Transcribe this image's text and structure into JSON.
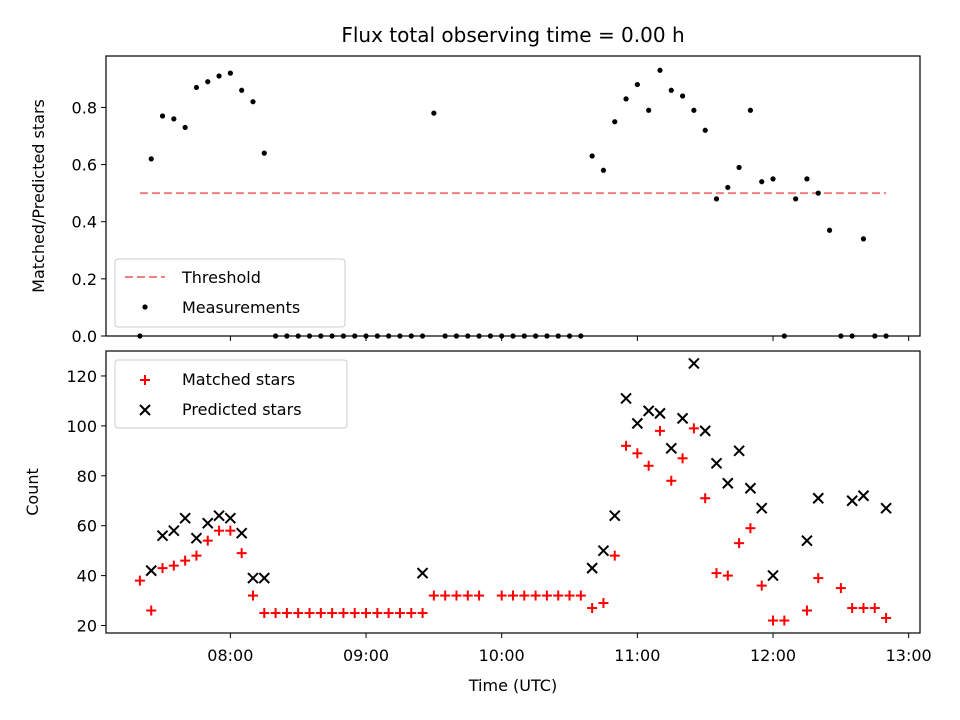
{
  "title": "Flux total observing time = 0.00 h",
  "colors": {
    "threshold": "#f08080",
    "measurements": "#000000",
    "matched": "#ff0000",
    "predicted": "#000000"
  },
  "chart_data": [
    {
      "type": "scatter",
      "panel": "top",
      "title": "Flux total observing time = 0.00 h",
      "xlabel": "",
      "ylabel": "Matched/Predicted stars",
      "ylim": [
        0,
        0.98
      ],
      "xlim": [
        "07:05",
        "13:05"
      ],
      "x_ticks": [
        "08:00",
        "09:00",
        "10:00",
        "11:00",
        "12:00",
        "13:00"
      ],
      "y_ticks": [
        "0.0",
        "0.2",
        "0.4",
        "0.6",
        "0.8"
      ],
      "legend": {
        "position": "lower-left",
        "threshold_label": "Threshold",
        "measurements_label": "Measurements"
      },
      "threshold": {
        "value": 0.5,
        "x": [
          "07:20",
          "12:50"
        ]
      },
      "series": [
        {
          "name": "Measurements",
          "marker": "dot",
          "x": [
            "07:20",
            "07:25",
            "07:30",
            "07:35",
            "07:40",
            "07:45",
            "07:50",
            "07:55",
            "08:00",
            "08:05",
            "08:10",
            "08:15",
            "08:20",
            "08:25",
            "08:30",
            "08:35",
            "08:40",
            "08:45",
            "08:50",
            "08:55",
            "09:00",
            "09:05",
            "09:10",
            "09:15",
            "09:20",
            "09:25",
            "09:30",
            "09:35",
            "09:40",
            "09:45",
            "09:50",
            "09:55",
            "10:00",
            "10:05",
            "10:10",
            "10:15",
            "10:20",
            "10:25",
            "10:30",
            "10:35",
            "10:40",
            "10:45",
            "10:50",
            "10:55",
            "11:00",
            "11:05",
            "11:10",
            "11:15",
            "11:20",
            "11:25",
            "11:30",
            "11:35",
            "11:40",
            "11:45",
            "11:50",
            "11:55",
            "12:00",
            "12:05",
            "12:10",
            "12:15",
            "12:20",
            "12:25",
            "12:30",
            "12:35",
            "12:40",
            "12:45",
            "12:50"
          ],
          "y": [
            0.0,
            0.62,
            0.77,
            0.76,
            0.73,
            0.87,
            0.89,
            0.91,
            0.92,
            0.86,
            0.82,
            0.64,
            0.0,
            0.0,
            0.0,
            0.0,
            0.0,
            0.0,
            0.0,
            0.0,
            0.0,
            0.0,
            0.0,
            0.0,
            0.0,
            0.0,
            0.78,
            0.0,
            0.0,
            0.0,
            0.0,
            0.0,
            0.0,
            0.0,
            0.0,
            0.0,
            0.0,
            0.0,
            0.0,
            0.0,
            0.63,
            0.58,
            0.75,
            0.83,
            0.88,
            0.79,
            0.93,
            0.86,
            0.84,
            0.79,
            0.72,
            0.48,
            0.52,
            0.59,
            0.79,
            0.54,
            0.55,
            0.0,
            0.48,
            0.55,
            0.5,
            0.37,
            0.0,
            0.0,
            0.34,
            0.0,
            0.0
          ]
        }
      ]
    },
    {
      "type": "scatter",
      "panel": "bottom",
      "xlabel": "Time (UTC)",
      "ylabel": "Count",
      "ylim": [
        17,
        130
      ],
      "xlim": [
        "07:05",
        "13:05"
      ],
      "x_ticks": [
        "08:00",
        "09:00",
        "10:00",
        "11:00",
        "12:00",
        "13:00"
      ],
      "y_ticks": [
        "20",
        "40",
        "60",
        "80",
        "100",
        "120"
      ],
      "legend": {
        "position": "upper-left"
      },
      "series": [
        {
          "name": "Matched stars",
          "marker": "plus",
          "x": [
            "07:20",
            "07:25",
            "07:30",
            "07:35",
            "07:40",
            "07:45",
            "07:50",
            "07:55",
            "08:00",
            "08:05",
            "08:10",
            "08:15",
            "08:20",
            "08:25",
            "08:30",
            "08:35",
            "08:40",
            "08:45",
            "08:50",
            "08:55",
            "09:00",
            "09:05",
            "09:10",
            "09:15",
            "09:20",
            "09:25",
            "09:30",
            "09:35",
            "09:40",
            "09:45",
            "09:50",
            "10:00",
            "10:05",
            "10:10",
            "10:15",
            "10:20",
            "10:25",
            "10:30",
            "10:35",
            "10:40",
            "10:45",
            "10:50",
            "10:55",
            "11:00",
            "11:05",
            "11:10",
            "11:15",
            "11:20",
            "11:25",
            "11:30",
            "11:35",
            "11:40",
            "11:45",
            "11:50",
            "11:55",
            "12:00",
            "12:05",
            "12:15",
            "12:20",
            "12:30",
            "12:35",
            "12:40",
            "12:45",
            "12:50"
          ],
          "y": [
            38,
            26,
            43,
            44,
            46,
            48,
            54,
            58,
            58,
            49,
            32,
            25,
            25,
            25,
            25,
            25,
            25,
            25,
            25,
            25,
            25,
            25,
            25,
            25,
            25,
            25,
            32,
            32,
            32,
            32,
            32,
            32,
            32,
            32,
            32,
            32,
            32,
            32,
            32,
            27,
            29,
            48,
            92,
            89,
            84,
            98,
            78,
            87,
            99,
            71,
            41,
            40,
            53,
            59,
            36,
            22,
            22,
            26,
            39,
            35,
            27,
            27,
            27,
            23
          ]
        },
        {
          "name": "Predicted stars",
          "marker": "x",
          "x": [
            "07:25",
            "07:30",
            "07:35",
            "07:40",
            "07:45",
            "07:50",
            "07:55",
            "08:00",
            "08:05",
            "08:10",
            "08:15",
            "09:25",
            "10:40",
            "10:45",
            "10:50",
            "10:55",
            "11:00",
            "11:05",
            "11:10",
            "11:15",
            "11:20",
            "11:25",
            "11:30",
            "11:35",
            "11:40",
            "11:45",
            "11:50",
            "11:55",
            "12:00",
            "12:15",
            "12:20",
            "12:35",
            "12:40",
            "12:50"
          ],
          "y": [
            42,
            56,
            58,
            63,
            55,
            61,
            64,
            63,
            57,
            39,
            39,
            41,
            43,
            50,
            64,
            111,
            101,
            106,
            105,
            91,
            103,
            125,
            98,
            85,
            77,
            90,
            75,
            67,
            40,
            54,
            71,
            70,
            72,
            67
          ]
        }
      ]
    }
  ]
}
